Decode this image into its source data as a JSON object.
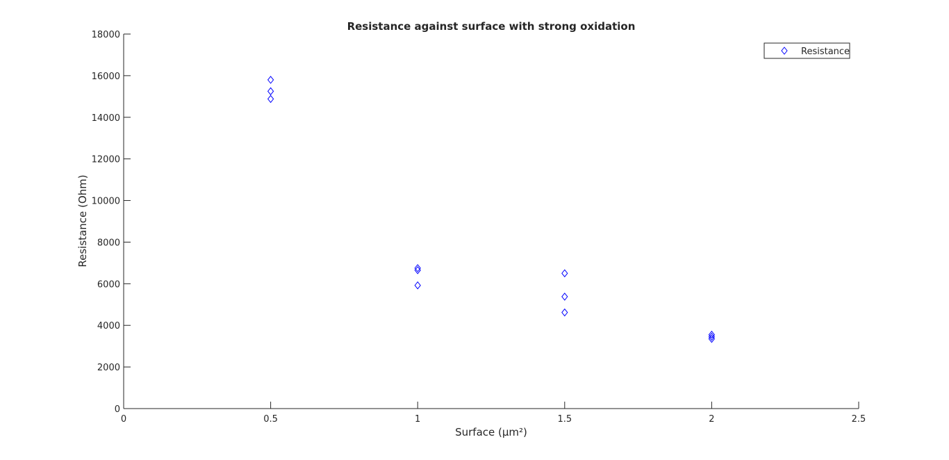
{
  "chart_data": {
    "type": "scatter",
    "title": "Resistance against surface with strong oxidation",
    "xlabel": "Surface (µm²)",
    "ylabel": "Resistance (Ohm)",
    "xlim": [
      0,
      2.5
    ],
    "ylim": [
      0,
      18000
    ],
    "xticks": [
      0,
      0.5,
      1,
      1.5,
      2,
      2.5
    ],
    "xtick_labels": [
      "0",
      "0.5",
      "1",
      "1.5",
      "2",
      "2.5"
    ],
    "yticks": [
      0,
      2000,
      4000,
      6000,
      8000,
      10000,
      12000,
      14000,
      16000,
      18000
    ],
    "ytick_labels": [
      "0",
      "2000",
      "4000",
      "6000",
      "8000",
      "10000",
      "12000",
      "14000",
      "16000",
      "18000"
    ],
    "grid": false,
    "legend_position": "top-right",
    "series": [
      {
        "name": "Resistance",
        "marker": "diamond",
        "color": "#0000ff",
        "points": [
          {
            "x": 0.5,
            "y": 15800
          },
          {
            "x": 0.5,
            "y": 15250
          },
          {
            "x": 0.5,
            "y": 14880
          },
          {
            "x": 1.0,
            "y": 6750
          },
          {
            "x": 1.0,
            "y": 6650
          },
          {
            "x": 1.0,
            "y": 5920
          },
          {
            "x": 1.5,
            "y": 6500
          },
          {
            "x": 1.5,
            "y": 5380
          },
          {
            "x": 1.5,
            "y": 4620
          },
          {
            "x": 2.0,
            "y": 3550
          },
          {
            "x": 2.0,
            "y": 3450
          },
          {
            "x": 2.0,
            "y": 3350
          }
        ]
      }
    ]
  }
}
